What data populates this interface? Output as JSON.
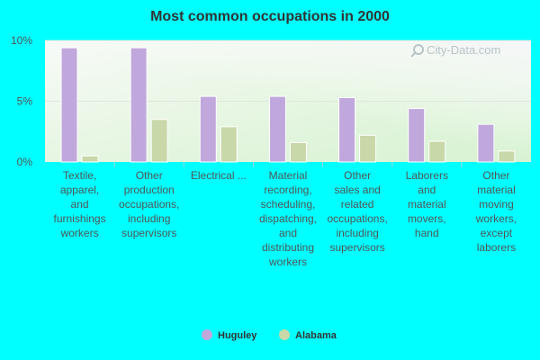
{
  "chart_data": {
    "type": "bar",
    "title": "Most common occupations in 2000",
    "xlabel": "",
    "ylabel": "",
    "ylim": [
      0,
      10
    ],
    "y_ticks": [
      {
        "value": 0,
        "label": "0%"
      },
      {
        "value": 5,
        "label": "5%"
      },
      {
        "value": 10,
        "label": "10%"
      }
    ],
    "categories": [
      [
        "Textile,",
        "apparel,",
        "and",
        "furnishings",
        "workers"
      ],
      [
        "Other",
        "production",
        "occupations,",
        "including",
        "supervisors"
      ],
      [
        "Electrical ..."
      ],
      [
        "Material",
        "recording,",
        "scheduling,",
        "dispatching,",
        "and",
        "distributing",
        "workers"
      ],
      [
        "Other",
        "sales and",
        "related",
        "occupations,",
        "including",
        "supervisors"
      ],
      [
        "Laborers",
        "and",
        "material",
        "movers,",
        "hand"
      ],
      [
        "Other",
        "material",
        "moving",
        "workers,",
        "except",
        "laborers"
      ]
    ],
    "series": [
      {
        "name": "Huguley",
        "color": "#c0a8dc",
        "values": [
          9.4,
          9.4,
          5.4,
          5.4,
          5.3,
          4.4,
          3.1
        ]
      },
      {
        "name": "Alabama",
        "color": "#c8d8a8",
        "values": [
          0.5,
          3.5,
          2.9,
          1.6,
          2.2,
          1.7,
          0.9
        ]
      }
    ],
    "grid": true,
    "legend_position": "bottom-center"
  },
  "watermark": {
    "text": "City-Data.com",
    "icon": "magnifier-icon"
  }
}
